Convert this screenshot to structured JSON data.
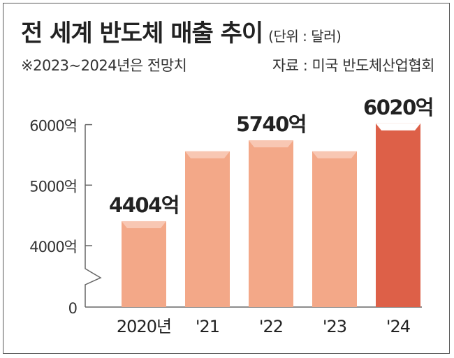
{
  "header": {
    "title": "전 세계 반도체 매출 추이",
    "unit": "(단위 : 달러)",
    "note": "※2023~2024년은 전망치",
    "source": "자료 : 미국 반도체산업협회"
  },
  "colors": {
    "bar": "#f3a888",
    "bar_highlight": "#dd6048",
    "axis": "#666666"
  },
  "chart_data": {
    "type": "bar",
    "categories": [
      "2020년",
      "'21",
      "'22",
      "'23",
      "'24"
    ],
    "values": [
      4404,
      5559,
      5740,
      5559,
      6020
    ],
    "data_labels": [
      "4404억",
      "",
      "5740억",
      "",
      "6020억"
    ],
    "highlight_index": 4,
    "yticks": [
      {
        "value": 0,
        "label": "0"
      },
      {
        "value": 4000,
        "label": "4000억"
      },
      {
        "value": 5000,
        "label": "5000억"
      },
      {
        "value": 6000,
        "label": "6000억"
      }
    ],
    "ylim": [
      0,
      6000
    ],
    "axis_break": true,
    "grid": false
  }
}
